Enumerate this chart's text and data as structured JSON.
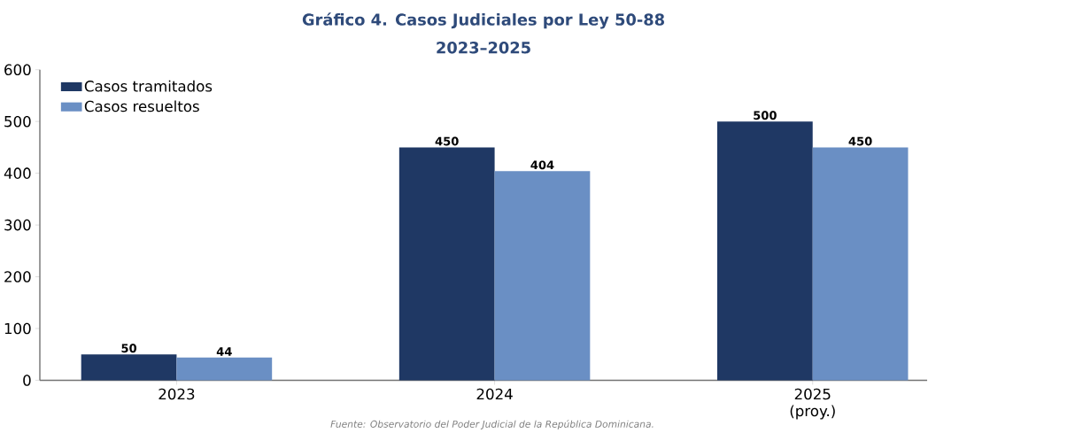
{
  "chart_data": {
    "type": "bar",
    "title": "Gráfico 4. Casos Judiciales por Ley 50-88",
    "subtitle": "2023–2025",
    "categories": [
      "2023",
      "2024",
      "2025 (proy.)"
    ],
    "series": [
      {
        "name": "Casos tramitados",
        "color": "#1f3864",
        "values": [
          50,
          450,
          500
        ]
      },
      {
        "name": "Casos resueltos",
        "color": "#6a8fc4",
        "values": [
          44,
          404,
          450
        ]
      }
    ],
    "ylim": [
      0,
      600
    ],
    "yticks": [
      0,
      100,
      200,
      300,
      400,
      500,
      600
    ],
    "grid": false,
    "legend": "top left",
    "data_labels": true,
    "annotations": [
      "Fuente: Observatorio del Poder Judicial de la República Dominicana."
    ]
  }
}
